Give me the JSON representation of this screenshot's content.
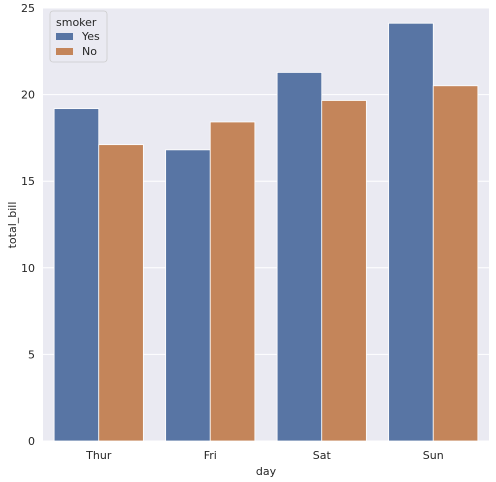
{
  "chart_data": {
    "type": "bar",
    "categories": [
      "Thur",
      "Fri",
      "Sat",
      "Sun"
    ],
    "series": [
      {
        "name": "Yes",
        "values": [
          19.19,
          16.81,
          21.28,
          24.12
        ],
        "color": "#5875a4"
      },
      {
        "name": "No",
        "values": [
          17.11,
          18.42,
          19.66,
          20.51
        ],
        "color": "#c4855a"
      }
    ],
    "title": "",
    "xlabel": "day",
    "ylabel": "total_bill",
    "ylim": [
      0,
      25
    ],
    "yticks": [
      0,
      5,
      10,
      15,
      20,
      25
    ],
    "grid": true,
    "legend": {
      "title": "smoker",
      "placement": "top-left"
    },
    "background_color": "#eaeaf2"
  }
}
